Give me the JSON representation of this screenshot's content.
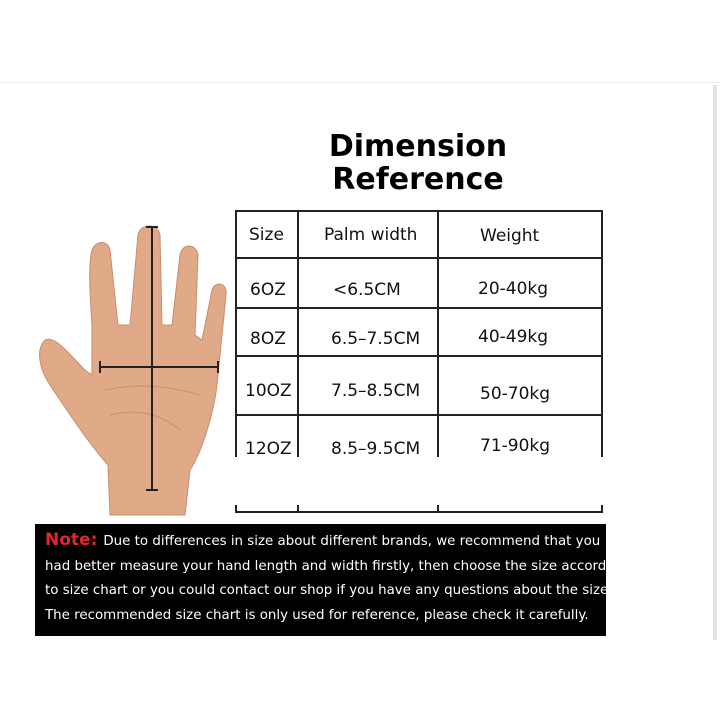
{
  "title_line1": "Dimension",
  "title_line2": "Reference",
  "table": {
    "headers": [
      "Size",
      "Palm width",
      "Weight"
    ],
    "rows": [
      [
        "6OZ",
        "<6.5CM",
        "20-40kg"
      ],
      [
        "8OZ",
        "6.5–7.5CM",
        "40-49kg"
      ],
      [
        "10OZ",
        "7.5–8.5CM",
        "50-70kg"
      ],
      [
        "12OZ",
        "8.5–9.5CM",
        "71-90kg"
      ]
    ]
  },
  "note": {
    "label": "Note:",
    "lines": [
      "Due to differences in size about different brands, we recommend that you",
      "had better measure your hand length and width firstly, then choose the size according",
      "to size chart or you could contact our shop if you have any questions about the size.",
      "The recommended size chart is only used for reference, please check it carefully."
    ]
  },
  "colors": {
    "note_label": "#e8242a",
    "note_bg": "#000000",
    "skin": "#e0a987"
  }
}
